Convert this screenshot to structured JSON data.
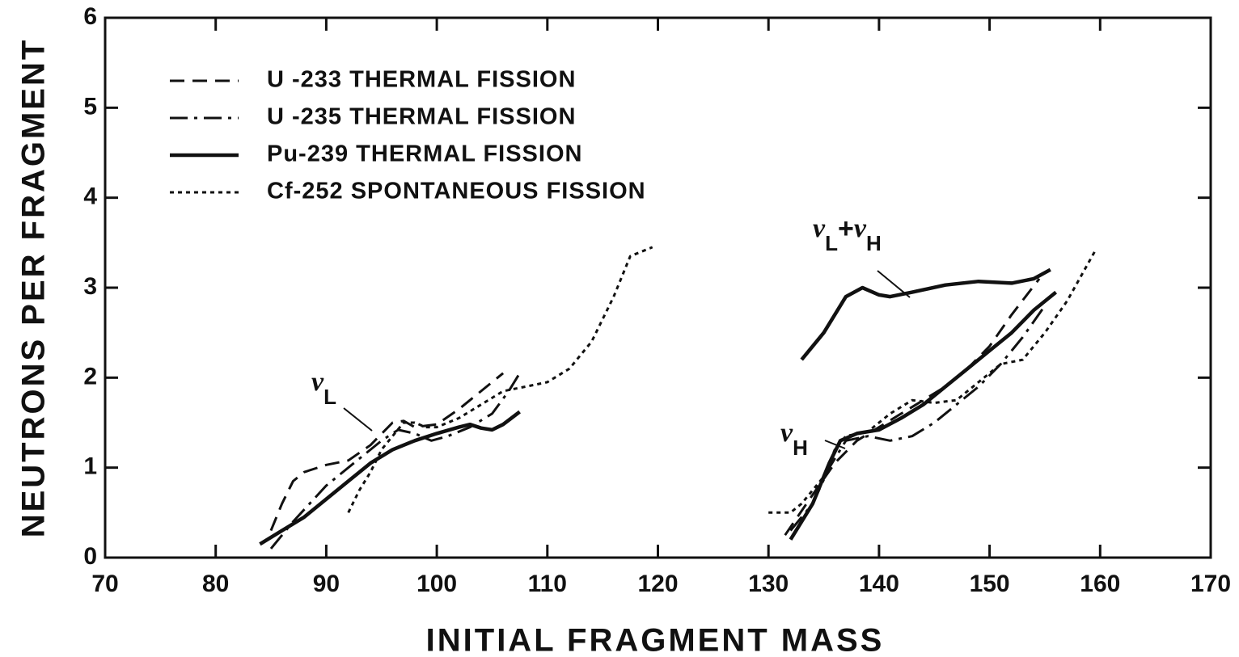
{
  "chart_data": {
    "type": "line",
    "xlabel": "INITIAL FRAGMENT MASS",
    "ylabel": "NEUTRONS PER FRAGMENT",
    "xlim": [
      70,
      170
    ],
    "xticks": [
      70,
      80,
      90,
      100,
      110,
      120,
      130,
      140,
      150,
      160,
      170
    ],
    "ylim": [
      0,
      6
    ],
    "yticks": [
      0,
      1,
      2,
      3,
      4,
      5,
      6
    ],
    "legend": "upper left",
    "grid": false,
    "annotations": [
      [
        "ν",
        "L"
      ],
      [
        "ν",
        "H"
      ],
      [
        "ν",
        "L",
        "+",
        "ν",
        "H"
      ]
    ],
    "series": [
      {
        "name": "U -233 THERMAL FISSION",
        "color": "#111111",
        "style": "dashed",
        "x": [
          85,
          86,
          87,
          88,
          90,
          92,
          94,
          96,
          97,
          98,
          100,
          102,
          104,
          106,
          null,
          131.5,
          134,
          136,
          138,
          140,
          142,
          144,
          146,
          148,
          150,
          152,
          154.5
        ],
        "values": [
          0.3,
          0.6,
          0.85,
          0.95,
          1.03,
          1.08,
          1.25,
          1.5,
          1.52,
          1.45,
          1.48,
          1.65,
          1.85,
          2.05,
          null,
          0.25,
          0.7,
          1.05,
          1.3,
          1.45,
          1.6,
          1.75,
          1.9,
          2.1,
          2.35,
          2.7,
          3.1
        ]
      },
      {
        "name": "U -235 THERMAL FISSION",
        "color": "#111111",
        "style": "dashdot",
        "x": [
          85,
          87,
          90,
          93,
          95,
          96.5,
          98,
          99.5,
          101,
          103,
          105,
          106.5,
          107.5,
          null,
          132,
          134,
          135.5,
          137,
          139,
          141,
          143,
          145,
          147,
          149,
          151,
          153,
          155
        ],
        "values": [
          0.1,
          0.4,
          0.8,
          1.1,
          1.3,
          1.42,
          1.38,
          1.3,
          1.35,
          1.45,
          1.6,
          1.85,
          2.05,
          null,
          0.3,
          0.6,
          1.0,
          1.3,
          1.35,
          1.3,
          1.35,
          1.5,
          1.7,
          1.9,
          2.15,
          2.45,
          2.8
        ]
      },
      {
        "name": "Pu-239 THERMAL FISSION",
        "color": "#111111",
        "style": "solid",
        "x": [
          84,
          86,
          88,
          90,
          92,
          94,
          96,
          98,
          100,
          102,
          103,
          104,
          105,
          106,
          107.5,
          null,
          132,
          134,
          135.5,
          136.5,
          138,
          140,
          142,
          144,
          146,
          148,
          150,
          152,
          154,
          156,
          null,
          133,
          135,
          137,
          138.5,
          140,
          141,
          143,
          146,
          149,
          152,
          154,
          155.5
        ],
        "values": [
          0.15,
          0.3,
          0.45,
          0.65,
          0.85,
          1.05,
          1.2,
          1.3,
          1.38,
          1.45,
          1.48,
          1.44,
          1.42,
          1.48,
          1.62,
          null,
          0.2,
          0.6,
          1.05,
          1.3,
          1.38,
          1.42,
          1.55,
          1.7,
          1.9,
          2.1,
          2.3,
          2.5,
          2.75,
          2.95,
          null,
          2.2,
          2.5,
          2.9,
          3.0,
          2.92,
          2.9,
          2.95,
          3.03,
          3.07,
          3.05,
          3.1,
          3.2
        ]
      },
      {
        "name": "Cf-252 SPONTANEOUS FISSION",
        "color": "#111111",
        "style": "dotted",
        "x": [
          92,
          93,
          94,
          95,
          96,
          97,
          98,
          99,
          100,
          102,
          104,
          106,
          108,
          110,
          112,
          114,
          116,
          117.5,
          119.5,
          null,
          130,
          132,
          133,
          135,
          136,
          137,
          139,
          141,
          143,
          145,
          147,
          149,
          151,
          153,
          155,
          157,
          159.5
        ],
        "values": [
          0.5,
          0.75,
          0.95,
          1.2,
          1.35,
          1.5,
          1.5,
          1.45,
          1.45,
          1.55,
          1.7,
          1.85,
          1.9,
          1.95,
          2.1,
          2.4,
          2.9,
          3.35,
          3.45,
          null,
          0.5,
          0.5,
          0.6,
          0.9,
          1.2,
          1.35,
          1.4,
          1.6,
          1.75,
          1.72,
          1.75,
          1.95,
          2.15,
          2.2,
          2.5,
          2.85,
          3.4
        ]
      }
    ]
  }
}
